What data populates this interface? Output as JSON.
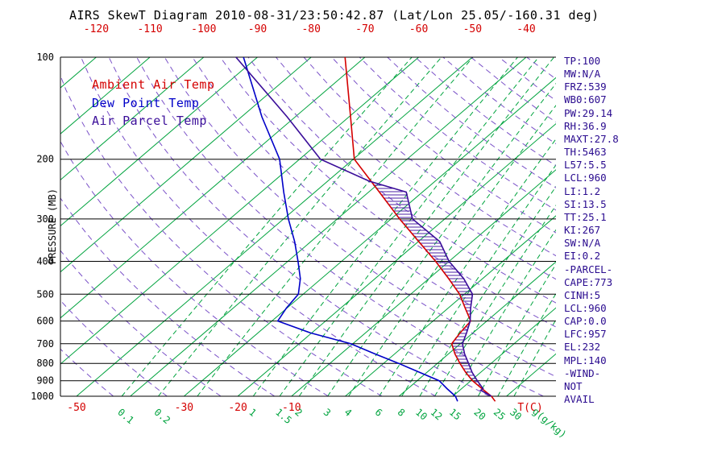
{
  "title": "AIRS SkewT Diagram 2010-08-31/23:50:42.87 (Lat/Lon 25.05/-160.31 deg)",
  "legend": {
    "ambient_label": "Ambient Air Temp",
    "dew_label": "Dew Point Temp",
    "parcel_label": "Air Parcel Temp"
  },
  "colors": {
    "ambient": "#d40000",
    "dew": "#0000c8",
    "parcel": "#3a0d99",
    "isotherm": "#00a33e",
    "mixing": "#00a33e",
    "adiabat": "#7b52c8",
    "stats": "#2a0b8f",
    "hatch": "#4b1fa6",
    "axis": "#000000"
  },
  "axes": {
    "pressure_axis_label": "PRESSURE (MB)",
    "pressure_ticks": [
      100,
      200,
      300,
      400,
      500,
      600,
      700,
      800,
      900,
      1000
    ],
    "top_temp_ticks": [
      -120,
      -110,
      -100,
      -90,
      -80,
      -70,
      -60,
      -50,
      -40
    ],
    "bottom_temp_ticks": [
      -50,
      -30,
      -20,
      -10
    ],
    "temp_unit": "T(C)"
  },
  "stats_panel": {
    "lines": [
      "TP:100",
      "MW:N/A",
      "FRZ:539",
      "WB0:607",
      "PW:29.14",
      "RH:36.9",
      "MAXT:27.8",
      "TH:5463",
      "L57:5.5",
      "LCL:960",
      "LI:1.2",
      "SI:13.5",
      "TT:25.1",
      "KI:267",
      "SW:N/A",
      "EI:0.2",
      "-PARCEL-",
      "CAPE:773",
      "CINH:5",
      "LCL:960",
      "CAP:0.0",
      "LFC:957",
      "EL:232",
      "MPL:140",
      "-WIND-",
      "NOT",
      "AVAIL"
    ]
  },
  "chart_data": {
    "type": "line",
    "title": "AIRS SkewT Diagram",
    "y_axis": {
      "label": "PRESSURE (MB)",
      "scale": "log",
      "range_mb": [
        100,
        1000
      ],
      "ticks_mb": [
        100,
        200,
        300,
        400,
        500,
        600,
        700,
        800,
        900,
        1000
      ]
    },
    "x_axis": {
      "label": "T(C)",
      "top_ticks_c": [
        -120,
        -110,
        -100,
        -90,
        -80,
        -70,
        -60,
        -50,
        -40
      ],
      "bottom_ticks_c": [
        -50,
        -30,
        -20,
        -10
      ],
      "skewed": true
    },
    "isotherms_c": {
      "min": -130,
      "max": 40,
      "step": 10
    },
    "dry_adiabats_k": {
      "min": 220,
      "max": 460,
      "step": 10
    },
    "mixing_ratio_g_per_kg": {
      "lines": [
        0.1,
        0.2,
        0.4,
        1,
        1.5,
        2,
        3,
        4,
        6,
        8,
        10,
        12,
        15,
        20,
        25,
        30
      ],
      "labels": [
        "0.1",
        "0.2",
        "1",
        "1.5",
        "2",
        "3",
        "4",
        "6",
        "8",
        "10",
        "12",
        "15",
        "20",
        "25",
        "30"
      ],
      "unit": "g(g/kg)"
    },
    "series": [
      {
        "name": "Ambient Air Temp",
        "color_key": "ambient",
        "points_p_t": [
          [
            1035,
            29.0
          ],
          [
            1000,
            27.2
          ],
          [
            950,
            23.8
          ],
          [
            900,
            20.3
          ],
          [
            850,
            17.2
          ],
          [
            800,
            14.2
          ],
          [
            750,
            11.2
          ],
          [
            700,
            8.4
          ],
          [
            650,
            7.6
          ],
          [
            600,
            7.0
          ],
          [
            550,
            3.2
          ],
          [
            500,
            -0.9
          ],
          [
            450,
            -6.3
          ],
          [
            400,
            -12.5
          ],
          [
            350,
            -19.9
          ],
          [
            300,
            -28.4
          ],
          [
            250,
            -38.0
          ],
          [
            200,
            -49.8
          ],
          [
            150,
            -59.7
          ],
          [
            100,
            -73.7
          ]
        ]
      },
      {
        "name": "Dew Point Temp",
        "color_key": "dew",
        "points_p_t": [
          [
            1035,
            22.0
          ],
          [
            1000,
            20.5
          ],
          [
            950,
            17.3
          ],
          [
            900,
            14.1
          ],
          [
            850,
            8.6
          ],
          [
            800,
            2.8
          ],
          [
            750,
            -3.7
          ],
          [
            700,
            -10.4
          ],
          [
            650,
            -20.3
          ],
          [
            600,
            -28.9
          ],
          [
            550,
            -30.1
          ],
          [
            500,
            -30.9
          ],
          [
            450,
            -33.9
          ],
          [
            400,
            -38.1
          ],
          [
            350,
            -43.0
          ],
          [
            300,
            -49.1
          ],
          [
            250,
            -55.8
          ],
          [
            200,
            -63.7
          ],
          [
            150,
            -76.2
          ],
          [
            100,
            -92.6
          ]
        ]
      },
      {
        "name": "Air Parcel Temp",
        "color_key": "parcel",
        "points_p_t": [
          [
            1000,
            27.2
          ],
          [
            960,
            23.9
          ],
          [
            950,
            24.0
          ],
          [
            900,
            21.2
          ],
          [
            850,
            18.4
          ],
          [
            800,
            15.8
          ],
          [
            750,
            13.0
          ],
          [
            700,
            10.4
          ],
          [
            650,
            8.8
          ],
          [
            600,
            6.9
          ],
          [
            550,
            4.2
          ],
          [
            500,
            1.5
          ],
          [
            450,
            -3.5
          ],
          [
            400,
            -10.0
          ],
          [
            350,
            -16.0
          ],
          [
            300,
            -26.0
          ],
          [
            250,
            -33.0
          ],
          [
            232,
            -42.3
          ],
          [
            200,
            -56.1
          ],
          [
            150,
            -71.5
          ],
          [
            100,
            -94.0
          ]
        ]
      }
    ],
    "cape_hatch": {
      "p_bottom": 950,
      "p_top": 233
    },
    "annotations": {
      "parcel_lcl_mb": 960,
      "parcel_lfc_mb": 957,
      "parcel_el_mb": 232,
      "parcel_mpl_mb": 140
    }
  }
}
